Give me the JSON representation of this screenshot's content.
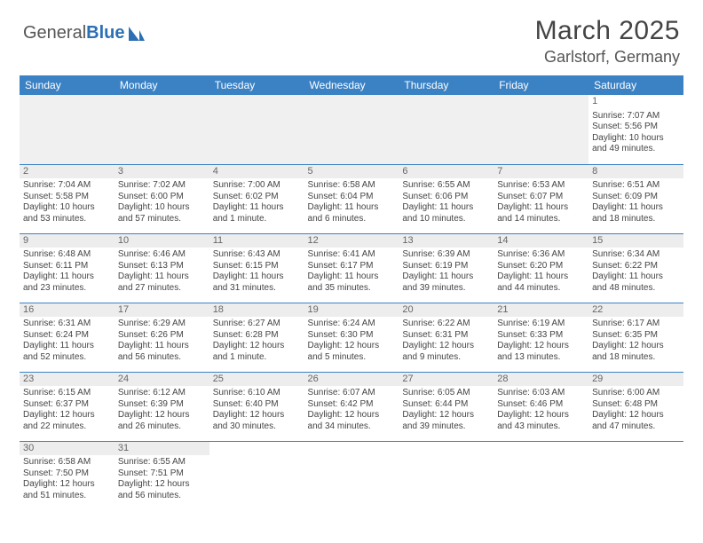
{
  "logo": {
    "text1": "General",
    "text2": "Blue"
  },
  "title": "March 2025",
  "location": "Garlstorf, Germany",
  "colors": {
    "header_bg": "#3b82c4",
    "header_text": "#ffffff",
    "cell_border": "#3b82c4",
    "daynum_bg": "#ededed",
    "body_text": "#444444",
    "logo_gray": "#555555",
    "logo_blue": "#2d6fb5"
  },
  "day_headers": [
    "Sunday",
    "Monday",
    "Tuesday",
    "Wednesday",
    "Thursday",
    "Friday",
    "Saturday"
  ],
  "weeks": [
    [
      {
        "n": "",
        "sr": "",
        "ss": "",
        "dl": ""
      },
      {
        "n": "",
        "sr": "",
        "ss": "",
        "dl": ""
      },
      {
        "n": "",
        "sr": "",
        "ss": "",
        "dl": ""
      },
      {
        "n": "",
        "sr": "",
        "ss": "",
        "dl": ""
      },
      {
        "n": "",
        "sr": "",
        "ss": "",
        "dl": ""
      },
      {
        "n": "",
        "sr": "",
        "ss": "",
        "dl": ""
      },
      {
        "n": "1",
        "sr": "Sunrise: 7:07 AM",
        "ss": "Sunset: 5:56 PM",
        "dl": "Daylight: 10 hours and 49 minutes."
      }
    ],
    [
      {
        "n": "2",
        "sr": "Sunrise: 7:04 AM",
        "ss": "Sunset: 5:58 PM",
        "dl": "Daylight: 10 hours and 53 minutes."
      },
      {
        "n": "3",
        "sr": "Sunrise: 7:02 AM",
        "ss": "Sunset: 6:00 PM",
        "dl": "Daylight: 10 hours and 57 minutes."
      },
      {
        "n": "4",
        "sr": "Sunrise: 7:00 AM",
        "ss": "Sunset: 6:02 PM",
        "dl": "Daylight: 11 hours and 1 minute."
      },
      {
        "n": "5",
        "sr": "Sunrise: 6:58 AM",
        "ss": "Sunset: 6:04 PM",
        "dl": "Daylight: 11 hours and 6 minutes."
      },
      {
        "n": "6",
        "sr": "Sunrise: 6:55 AM",
        "ss": "Sunset: 6:06 PM",
        "dl": "Daylight: 11 hours and 10 minutes."
      },
      {
        "n": "7",
        "sr": "Sunrise: 6:53 AM",
        "ss": "Sunset: 6:07 PM",
        "dl": "Daylight: 11 hours and 14 minutes."
      },
      {
        "n": "8",
        "sr": "Sunrise: 6:51 AM",
        "ss": "Sunset: 6:09 PM",
        "dl": "Daylight: 11 hours and 18 minutes."
      }
    ],
    [
      {
        "n": "9",
        "sr": "Sunrise: 6:48 AM",
        "ss": "Sunset: 6:11 PM",
        "dl": "Daylight: 11 hours and 23 minutes."
      },
      {
        "n": "10",
        "sr": "Sunrise: 6:46 AM",
        "ss": "Sunset: 6:13 PM",
        "dl": "Daylight: 11 hours and 27 minutes."
      },
      {
        "n": "11",
        "sr": "Sunrise: 6:43 AM",
        "ss": "Sunset: 6:15 PM",
        "dl": "Daylight: 11 hours and 31 minutes."
      },
      {
        "n": "12",
        "sr": "Sunrise: 6:41 AM",
        "ss": "Sunset: 6:17 PM",
        "dl": "Daylight: 11 hours and 35 minutes."
      },
      {
        "n": "13",
        "sr": "Sunrise: 6:39 AM",
        "ss": "Sunset: 6:19 PM",
        "dl": "Daylight: 11 hours and 39 minutes."
      },
      {
        "n": "14",
        "sr": "Sunrise: 6:36 AM",
        "ss": "Sunset: 6:20 PM",
        "dl": "Daylight: 11 hours and 44 minutes."
      },
      {
        "n": "15",
        "sr": "Sunrise: 6:34 AM",
        "ss": "Sunset: 6:22 PM",
        "dl": "Daylight: 11 hours and 48 minutes."
      }
    ],
    [
      {
        "n": "16",
        "sr": "Sunrise: 6:31 AM",
        "ss": "Sunset: 6:24 PM",
        "dl": "Daylight: 11 hours and 52 minutes."
      },
      {
        "n": "17",
        "sr": "Sunrise: 6:29 AM",
        "ss": "Sunset: 6:26 PM",
        "dl": "Daylight: 11 hours and 56 minutes."
      },
      {
        "n": "18",
        "sr": "Sunrise: 6:27 AM",
        "ss": "Sunset: 6:28 PM",
        "dl": "Daylight: 12 hours and 1 minute."
      },
      {
        "n": "19",
        "sr": "Sunrise: 6:24 AM",
        "ss": "Sunset: 6:30 PM",
        "dl": "Daylight: 12 hours and 5 minutes."
      },
      {
        "n": "20",
        "sr": "Sunrise: 6:22 AM",
        "ss": "Sunset: 6:31 PM",
        "dl": "Daylight: 12 hours and 9 minutes."
      },
      {
        "n": "21",
        "sr": "Sunrise: 6:19 AM",
        "ss": "Sunset: 6:33 PM",
        "dl": "Daylight: 12 hours and 13 minutes."
      },
      {
        "n": "22",
        "sr": "Sunrise: 6:17 AM",
        "ss": "Sunset: 6:35 PM",
        "dl": "Daylight: 12 hours and 18 minutes."
      }
    ],
    [
      {
        "n": "23",
        "sr": "Sunrise: 6:15 AM",
        "ss": "Sunset: 6:37 PM",
        "dl": "Daylight: 12 hours and 22 minutes."
      },
      {
        "n": "24",
        "sr": "Sunrise: 6:12 AM",
        "ss": "Sunset: 6:39 PM",
        "dl": "Daylight: 12 hours and 26 minutes."
      },
      {
        "n": "25",
        "sr": "Sunrise: 6:10 AM",
        "ss": "Sunset: 6:40 PM",
        "dl": "Daylight: 12 hours and 30 minutes."
      },
      {
        "n": "26",
        "sr": "Sunrise: 6:07 AM",
        "ss": "Sunset: 6:42 PM",
        "dl": "Daylight: 12 hours and 34 minutes."
      },
      {
        "n": "27",
        "sr": "Sunrise: 6:05 AM",
        "ss": "Sunset: 6:44 PM",
        "dl": "Daylight: 12 hours and 39 minutes."
      },
      {
        "n": "28",
        "sr": "Sunrise: 6:03 AM",
        "ss": "Sunset: 6:46 PM",
        "dl": "Daylight: 12 hours and 43 minutes."
      },
      {
        "n": "29",
        "sr": "Sunrise: 6:00 AM",
        "ss": "Sunset: 6:48 PM",
        "dl": "Daylight: 12 hours and 47 minutes."
      }
    ],
    [
      {
        "n": "30",
        "sr": "Sunrise: 6:58 AM",
        "ss": "Sunset: 7:50 PM",
        "dl": "Daylight: 12 hours and 51 minutes."
      },
      {
        "n": "31",
        "sr": "Sunrise: 6:55 AM",
        "ss": "Sunset: 7:51 PM",
        "dl": "Daylight: 12 hours and 56 minutes."
      },
      {
        "n": "",
        "sr": "",
        "ss": "",
        "dl": ""
      },
      {
        "n": "",
        "sr": "",
        "ss": "",
        "dl": ""
      },
      {
        "n": "",
        "sr": "",
        "ss": "",
        "dl": ""
      },
      {
        "n": "",
        "sr": "",
        "ss": "",
        "dl": ""
      },
      {
        "n": "",
        "sr": "",
        "ss": "",
        "dl": ""
      }
    ]
  ]
}
